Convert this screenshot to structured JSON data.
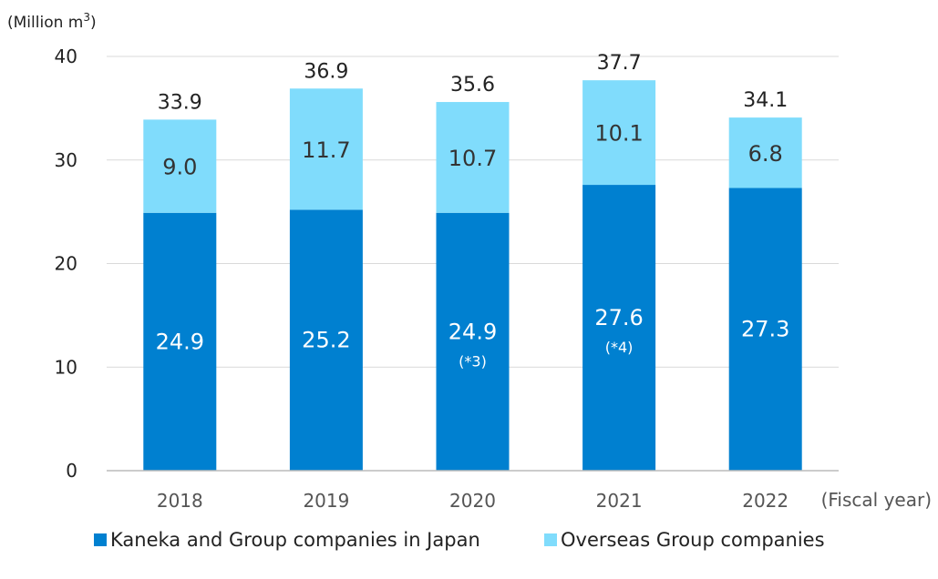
{
  "chart_data": {
    "type": "bar",
    "stacked": true,
    "unit_label": "(Million m3)",
    "x_unit_label": "(Fiscal year)",
    "categories": [
      "2018",
      "2019",
      "2020",
      "2021",
      "2022"
    ],
    "series": [
      {
        "name": "Kaneka and Group companies in Japan",
        "values": [
          24.9,
          25.2,
          24.9,
          27.6,
          27.3
        ],
        "notes": [
          "",
          "",
          "(*3)",
          "(*4)",
          ""
        ],
        "color": "#0080d0"
      },
      {
        "name": "Overseas Group companies",
        "values": [
          9.0,
          11.7,
          10.7,
          10.1,
          6.8
        ],
        "color": "#80dcfc"
      }
    ],
    "totals": [
      33.9,
      36.9,
      35.6,
      37.7,
      34.1
    ],
    "y_ticks": [
      0,
      10,
      20,
      30,
      40
    ],
    "ylim": [
      0,
      40
    ],
    "grid": true,
    "legend_position": "bottom"
  }
}
